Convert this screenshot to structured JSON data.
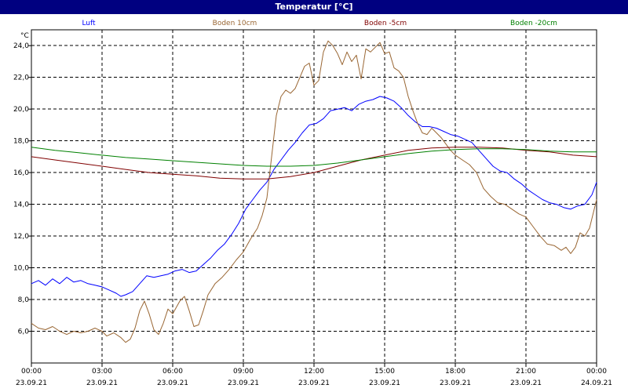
{
  "window": {
    "title": "Temperatur [°C]"
  },
  "chart_data": {
    "type": "line",
    "title": "Temperatur [°C]",
    "ylabel": "°C",
    "xlabel": "",
    "ylim": [
      4.0,
      25.0
    ],
    "yticks": [
      6.0,
      8.0,
      10.0,
      12.0,
      14.0,
      16.0,
      18.0,
      20.0,
      22.0,
      24.0
    ],
    "ytick_labels": [
      "6,0",
      "8,0",
      "10,0",
      "12,0",
      "14,0",
      "16,0",
      "18,0",
      "20,0",
      "22,0",
      "24,0"
    ],
    "xlim": [
      0,
      24
    ],
    "xticks": [
      0,
      3,
      6,
      9,
      12,
      15,
      18,
      21,
      24
    ],
    "xtick_labels": [
      [
        "00:00",
        "23.09.21"
      ],
      [
        "03:00",
        "23.09.21"
      ],
      [
        "06:00",
        "23.09.21"
      ],
      [
        "09:00",
        "23.09.21"
      ],
      [
        "12:00",
        "23.09.21"
      ],
      [
        "15:00",
        "23.09.21"
      ],
      [
        "18:00",
        "23.09.21"
      ],
      [
        "21:00",
        "23.09.21"
      ],
      [
        "00:00",
        "24.09.21"
      ]
    ],
    "grid": true,
    "legend_position": "top",
    "series": [
      {
        "name": "Luft",
        "color": "#0000ff",
        "points": [
          [
            0,
            9.0
          ],
          [
            0.3,
            9.2
          ],
          [
            0.6,
            8.9
          ],
          [
            0.9,
            9.3
          ],
          [
            1.2,
            9.0
          ],
          [
            1.5,
            9.4
          ],
          [
            1.8,
            9.1
          ],
          [
            2.1,
            9.2
          ],
          [
            2.4,
            9.0
          ],
          [
            2.7,
            8.9
          ],
          [
            3.0,
            8.8
          ],
          [
            3.3,
            8.6
          ],
          [
            3.6,
            8.4
          ],
          [
            3.8,
            8.2
          ],
          [
            4.0,
            8.3
          ],
          [
            4.3,
            8.5
          ],
          [
            4.6,
            9.0
          ],
          [
            4.9,
            9.5
          ],
          [
            5.2,
            9.4
          ],
          [
            5.5,
            9.5
          ],
          [
            5.8,
            9.6
          ],
          [
            6.1,
            9.8
          ],
          [
            6.4,
            9.9
          ],
          [
            6.7,
            9.7
          ],
          [
            7.0,
            9.8
          ],
          [
            7.3,
            10.2
          ],
          [
            7.6,
            10.6
          ],
          [
            7.9,
            11.1
          ],
          [
            8.2,
            11.5
          ],
          [
            8.5,
            12.1
          ],
          [
            8.8,
            12.8
          ],
          [
            9.1,
            13.7
          ],
          [
            9.4,
            14.3
          ],
          [
            9.7,
            14.9
          ],
          [
            10.0,
            15.4
          ],
          [
            10.3,
            16.2
          ],
          [
            10.6,
            16.8
          ],
          [
            10.9,
            17.4
          ],
          [
            11.2,
            17.9
          ],
          [
            11.5,
            18.5
          ],
          [
            11.8,
            19.0
          ],
          [
            12.1,
            19.1
          ],
          [
            12.4,
            19.4
          ],
          [
            12.7,
            19.9
          ],
          [
            13.0,
            20.0
          ],
          [
            13.3,
            20.1
          ],
          [
            13.6,
            19.9
          ],
          [
            13.9,
            20.3
          ],
          [
            14.2,
            20.5
          ],
          [
            14.5,
            20.6
          ],
          [
            14.8,
            20.8
          ],
          [
            15.1,
            20.7
          ],
          [
            15.4,
            20.5
          ],
          [
            15.7,
            20.1
          ],
          [
            16.0,
            19.6
          ],
          [
            16.3,
            19.2
          ],
          [
            16.6,
            18.9
          ],
          [
            16.9,
            18.9
          ],
          [
            17.2,
            18.8
          ],
          [
            17.5,
            18.6
          ],
          [
            17.8,
            18.4
          ],
          [
            18.1,
            18.3
          ],
          [
            18.4,
            18.1
          ],
          [
            18.7,
            17.9
          ],
          [
            19.0,
            17.4
          ],
          [
            19.3,
            16.9
          ],
          [
            19.6,
            16.4
          ],
          [
            19.9,
            16.1
          ],
          [
            20.2,
            16.0
          ],
          [
            20.5,
            15.6
          ],
          [
            20.8,
            15.3
          ],
          [
            21.1,
            14.9
          ],
          [
            21.4,
            14.6
          ],
          [
            21.7,
            14.3
          ],
          [
            22.0,
            14.1
          ],
          [
            22.3,
            14.0
          ],
          [
            22.6,
            13.8
          ],
          [
            22.9,
            13.7
          ],
          [
            23.2,
            13.9
          ],
          [
            23.5,
            14.0
          ],
          [
            23.8,
            14.6
          ],
          [
            24.0,
            15.4
          ]
        ]
      },
      {
        "name": "Boden 10cm",
        "color": "#996633",
        "points": [
          [
            0,
            6.5
          ],
          [
            0.3,
            6.2
          ],
          [
            0.6,
            6.1
          ],
          [
            0.9,
            6.3
          ],
          [
            1.2,
            6.0
          ],
          [
            1.5,
            5.8
          ],
          [
            1.8,
            6.0
          ],
          [
            2.1,
            5.9
          ],
          [
            2.4,
            6.0
          ],
          [
            2.7,
            6.2
          ],
          [
            3.0,
            6.0
          ],
          [
            3.2,
            5.7
          ],
          [
            3.5,
            5.9
          ],
          [
            3.8,
            5.6
          ],
          [
            4.0,
            5.3
          ],
          [
            4.2,
            5.5
          ],
          [
            4.4,
            6.2
          ],
          [
            4.6,
            7.3
          ],
          [
            4.8,
            7.9
          ],
          [
            5.0,
            7.1
          ],
          [
            5.2,
            6.1
          ],
          [
            5.4,
            5.8
          ],
          [
            5.6,
            6.5
          ],
          [
            5.8,
            7.4
          ],
          [
            6.0,
            7.1
          ],
          [
            6.3,
            7.9
          ],
          [
            6.5,
            8.2
          ],
          [
            6.7,
            7.3
          ],
          [
            6.9,
            6.3
          ],
          [
            7.1,
            6.4
          ],
          [
            7.3,
            7.3
          ],
          [
            7.5,
            8.3
          ],
          [
            7.8,
            9.0
          ],
          [
            8.1,
            9.4
          ],
          [
            8.4,
            9.9
          ],
          [
            8.7,
            10.5
          ],
          [
            9.0,
            11.0
          ],
          [
            9.3,
            11.8
          ],
          [
            9.6,
            12.5
          ],
          [
            9.8,
            13.3
          ],
          [
            10.0,
            14.4
          ],
          [
            10.2,
            17.0
          ],
          [
            10.4,
            19.6
          ],
          [
            10.6,
            20.8
          ],
          [
            10.8,
            21.2
          ],
          [
            11.0,
            21.0
          ],
          [
            11.2,
            21.3
          ],
          [
            11.4,
            22.0
          ],
          [
            11.6,
            22.7
          ],
          [
            11.8,
            22.9
          ],
          [
            12.0,
            21.5
          ],
          [
            12.2,
            21.8
          ],
          [
            12.4,
            23.6
          ],
          [
            12.6,
            24.3
          ],
          [
            12.8,
            24.0
          ],
          [
            13.0,
            23.5
          ],
          [
            13.2,
            22.8
          ],
          [
            13.4,
            23.6
          ],
          [
            13.6,
            23.0
          ],
          [
            13.8,
            23.4
          ],
          [
            14.0,
            21.9
          ],
          [
            14.2,
            23.8
          ],
          [
            14.4,
            23.6
          ],
          [
            14.6,
            23.9
          ],
          [
            14.8,
            24.2
          ],
          [
            15.0,
            23.5
          ],
          [
            15.2,
            23.6
          ],
          [
            15.4,
            22.6
          ],
          [
            15.6,
            22.4
          ],
          [
            15.8,
            22.0
          ],
          [
            16.0,
            20.8
          ],
          [
            16.2,
            19.9
          ],
          [
            16.4,
            19.1
          ],
          [
            16.6,
            18.5
          ],
          [
            16.8,
            18.4
          ],
          [
            17.0,
            18.8
          ],
          [
            17.2,
            18.5
          ],
          [
            17.4,
            18.2
          ],
          [
            17.6,
            17.8
          ],
          [
            17.8,
            17.4
          ],
          [
            18.0,
            17.1
          ],
          [
            18.3,
            16.8
          ],
          [
            18.6,
            16.5
          ],
          [
            18.9,
            16.0
          ],
          [
            19.2,
            15.0
          ],
          [
            19.5,
            14.5
          ],
          [
            19.8,
            14.1
          ],
          [
            20.1,
            14.0
          ],
          [
            20.4,
            13.7
          ],
          [
            20.7,
            13.4
          ],
          [
            21.0,
            13.2
          ],
          [
            21.3,
            12.6
          ],
          [
            21.6,
            12.0
          ],
          [
            21.9,
            11.5
          ],
          [
            22.2,
            11.4
          ],
          [
            22.5,
            11.1
          ],
          [
            22.7,
            11.3
          ],
          [
            22.9,
            10.9
          ],
          [
            23.1,
            11.3
          ],
          [
            23.3,
            12.2
          ],
          [
            23.5,
            12.0
          ],
          [
            23.7,
            12.5
          ],
          [
            23.9,
            13.7
          ],
          [
            24.0,
            14.3
          ]
        ]
      },
      {
        "name": "Boden -5cm",
        "color": "#800000",
        "points": [
          [
            0,
            17.0
          ],
          [
            1,
            16.8
          ],
          [
            2,
            16.6
          ],
          [
            3,
            16.4
          ],
          [
            4,
            16.2
          ],
          [
            5,
            16.0
          ],
          [
            6,
            15.9
          ],
          [
            7,
            15.8
          ],
          [
            8,
            15.65
          ],
          [
            9,
            15.6
          ],
          [
            10,
            15.6
          ],
          [
            11,
            15.75
          ],
          [
            12,
            16.0
          ],
          [
            13,
            16.4
          ],
          [
            14,
            16.8
          ],
          [
            15,
            17.1
          ],
          [
            16,
            17.4
          ],
          [
            17,
            17.55
          ],
          [
            18,
            17.6
          ],
          [
            19,
            17.6
          ],
          [
            20,
            17.55
          ],
          [
            21,
            17.4
          ],
          [
            22,
            17.3
          ],
          [
            23,
            17.1
          ],
          [
            24,
            17.0
          ]
        ]
      },
      {
        "name": "Boden -20cm",
        "color": "#008000",
        "points": [
          [
            0,
            17.6
          ],
          [
            1,
            17.4
          ],
          [
            2,
            17.25
          ],
          [
            3,
            17.1
          ],
          [
            4,
            16.95
          ],
          [
            5,
            16.85
          ],
          [
            6,
            16.75
          ],
          [
            7,
            16.65
          ],
          [
            8,
            16.55
          ],
          [
            9,
            16.45
          ],
          [
            10,
            16.4
          ],
          [
            11,
            16.4
          ],
          [
            12,
            16.45
          ],
          [
            13,
            16.6
          ],
          [
            14,
            16.8
          ],
          [
            15,
            17.0
          ],
          [
            16,
            17.2
          ],
          [
            17,
            17.35
          ],
          [
            18,
            17.45
          ],
          [
            19,
            17.5
          ],
          [
            20,
            17.5
          ],
          [
            21,
            17.45
          ],
          [
            22,
            17.35
          ],
          [
            23,
            17.3
          ],
          [
            24,
            17.3
          ]
        ]
      }
    ]
  }
}
